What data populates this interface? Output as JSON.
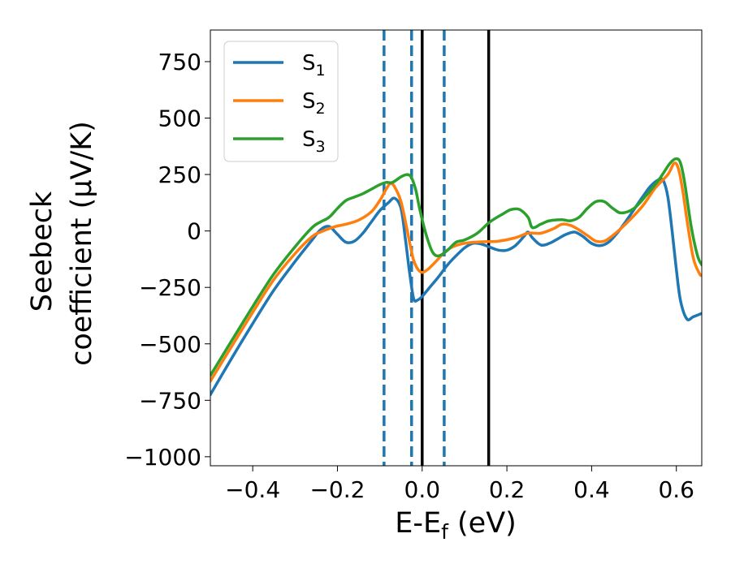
{
  "chart_data": {
    "type": "line",
    "xlabel": {
      "base": "E-E",
      "sub": "f",
      "rest": " (eV)"
    },
    "ylabel": {
      "line1": "Seebeck",
      "line2": "coefficient  (μV/K)"
    },
    "xlim": [
      -0.5,
      0.66
    ],
    "ylim": [
      -1040,
      890
    ],
    "xticks": [
      -0.4,
      -0.2,
      0.0,
      0.2,
      0.4,
      0.6
    ],
    "xtick_labels": [
      "−0.4",
      "−0.2",
      "0.0",
      "0.2",
      "0.4",
      "0.6"
    ],
    "yticks": [
      750,
      500,
      250,
      0,
      -250,
      -500,
      -750,
      -1000
    ],
    "ytick_labels": [
      "750",
      "500",
      "250",
      "0",
      "−250",
      "−500",
      "−750",
      "−1000"
    ],
    "grid": false,
    "legend_position": "top-left",
    "series": [
      {
        "name": "S1",
        "label_base": "S",
        "label_sub": "1",
        "color": "#1f77b4",
        "points": [
          [
            -0.5,
            -725
          ],
          [
            -0.45,
            -565
          ],
          [
            -0.4,
            -410
          ],
          [
            -0.35,
            -262
          ],
          [
            -0.3,
            -135
          ],
          [
            -0.26,
            -40
          ],
          [
            -0.24,
            5
          ],
          [
            -0.22,
            20
          ],
          [
            -0.2,
            -15
          ],
          [
            -0.18,
            -50
          ],
          [
            -0.16,
            -45
          ],
          [
            -0.14,
            -10
          ],
          [
            -0.12,
            40
          ],
          [
            -0.1,
            90
          ],
          [
            -0.08,
            125
          ],
          [
            -0.065,
            145
          ],
          [
            -0.05,
            100
          ],
          [
            -0.04,
            -30
          ],
          [
            -0.03,
            -180
          ],
          [
            -0.02,
            -300
          ],
          [
            -0.01,
            -305
          ],
          [
            0.0,
            -290
          ],
          [
            0.02,
            -245
          ],
          [
            0.04,
            -200
          ],
          [
            0.06,
            -150
          ],
          [
            0.08,
            -110
          ],
          [
            0.1,
            -75
          ],
          [
            0.12,
            -55
          ],
          [
            0.14,
            -58
          ],
          [
            0.16,
            -72
          ],
          [
            0.18,
            -85
          ],
          [
            0.2,
            -85
          ],
          [
            0.22,
            -65
          ],
          [
            0.24,
            -25
          ],
          [
            0.25,
            -5
          ],
          [
            0.26,
            -30
          ],
          [
            0.28,
            -62
          ],
          [
            0.3,
            -55
          ],
          [
            0.32,
            -35
          ],
          [
            0.34,
            -15
          ],
          [
            0.36,
            -5
          ],
          [
            0.38,
            -25
          ],
          [
            0.4,
            -55
          ],
          [
            0.42,
            -65
          ],
          [
            0.44,
            -50
          ],
          [
            0.46,
            -10
          ],
          [
            0.48,
            40
          ],
          [
            0.5,
            95
          ],
          [
            0.52,
            150
          ],
          [
            0.54,
            200
          ],
          [
            0.56,
            228
          ],
          [
            0.57,
            220
          ],
          [
            0.58,
            150
          ],
          [
            0.59,
            0
          ],
          [
            0.6,
            -170
          ],
          [
            0.61,
            -310
          ],
          [
            0.625,
            -390
          ],
          [
            0.64,
            -380
          ],
          [
            0.66,
            -365
          ]
        ]
      },
      {
        "name": "S2",
        "label_base": "S",
        "label_sub": "2",
        "color": "#ff7f0e",
        "points": [
          [
            -0.5,
            -665
          ],
          [
            -0.45,
            -512
          ],
          [
            -0.4,
            -360
          ],
          [
            -0.35,
            -215
          ],
          [
            -0.3,
            -100
          ],
          [
            -0.26,
            -25
          ],
          [
            -0.24,
            -5
          ],
          [
            -0.22,
            10
          ],
          [
            -0.2,
            22
          ],
          [
            -0.18,
            30
          ],
          [
            -0.15,
            48
          ],
          [
            -0.12,
            85
          ],
          [
            -0.1,
            135
          ],
          [
            -0.085,
            185
          ],
          [
            -0.075,
            210
          ],
          [
            -0.065,
            195
          ],
          [
            -0.05,
            130
          ],
          [
            -0.035,
            0
          ],
          [
            -0.02,
            -130
          ],
          [
            -0.005,
            -180
          ],
          [
            0.01,
            -175
          ],
          [
            0.03,
            -140
          ],
          [
            0.05,
            -100
          ],
          [
            0.07,
            -72
          ],
          [
            0.1,
            -55
          ],
          [
            0.14,
            -48
          ],
          [
            0.18,
            -45
          ],
          [
            0.22,
            -30
          ],
          [
            0.25,
            -10
          ],
          [
            0.28,
            -10
          ],
          [
            0.31,
            10
          ],
          [
            0.33,
            30
          ],
          [
            0.35,
            25
          ],
          [
            0.37,
            5
          ],
          [
            0.39,
            -20
          ],
          [
            0.41,
            -45
          ],
          [
            0.43,
            -45
          ],
          [
            0.45,
            -20
          ],
          [
            0.48,
            30
          ],
          [
            0.52,
            110
          ],
          [
            0.55,
            190
          ],
          [
            0.58,
            250
          ],
          [
            0.595,
            300
          ],
          [
            0.605,
            275
          ],
          [
            0.615,
            180
          ],
          [
            0.625,
            50
          ],
          [
            0.64,
            -120
          ],
          [
            0.655,
            -190
          ],
          [
            0.66,
            -195
          ]
        ]
      },
      {
        "name": "S3",
        "label_base": "S",
        "label_sub": "3",
        "color": "#2ca02c",
        "points": [
          [
            -0.5,
            -640
          ],
          [
            -0.45,
            -487
          ],
          [
            -0.4,
            -335
          ],
          [
            -0.35,
            -190
          ],
          [
            -0.3,
            -70
          ],
          [
            -0.26,
            15
          ],
          [
            -0.24,
            40
          ],
          [
            -0.22,
            60
          ],
          [
            -0.2,
            100
          ],
          [
            -0.18,
            135
          ],
          [
            -0.16,
            150
          ],
          [
            -0.14,
            165
          ],
          [
            -0.12,
            185
          ],
          [
            -0.1,
            205
          ],
          [
            -0.085,
            215
          ],
          [
            -0.07,
            215
          ],
          [
            -0.05,
            240
          ],
          [
            -0.035,
            250
          ],
          [
            -0.025,
            235
          ],
          [
            -0.015,
            180
          ],
          [
            -0.005,
            90
          ],
          [
            0.01,
            -20
          ],
          [
            0.025,
            -95
          ],
          [
            0.04,
            -110
          ],
          [
            0.06,
            -85
          ],
          [
            0.08,
            -50
          ],
          [
            0.1,
            -40
          ],
          [
            0.13,
            -10
          ],
          [
            0.16,
            40
          ],
          [
            0.19,
            75
          ],
          [
            0.21,
            95
          ],
          [
            0.23,
            95
          ],
          [
            0.25,
            60
          ],
          [
            0.26,
            15
          ],
          [
            0.28,
            30
          ],
          [
            0.3,
            45
          ],
          [
            0.33,
            50
          ],
          [
            0.35,
            45
          ],
          [
            0.37,
            60
          ],
          [
            0.39,
            100
          ],
          [
            0.41,
            130
          ],
          [
            0.43,
            130
          ],
          [
            0.45,
            100
          ],
          [
            0.47,
            80
          ],
          [
            0.5,
            100
          ],
          [
            0.53,
            160
          ],
          [
            0.56,
            230
          ],
          [
            0.585,
            300
          ],
          [
            0.6,
            320
          ],
          [
            0.61,
            300
          ],
          [
            0.62,
            210
          ],
          [
            0.635,
            20
          ],
          [
            0.65,
            -110
          ],
          [
            0.66,
            -150
          ]
        ]
      }
    ],
    "vlines": [
      {
        "x": -0.09,
        "style": "dashed",
        "color": "#1f77b4"
      },
      {
        "x": -0.025,
        "style": "dashed",
        "color": "#1f77b4"
      },
      {
        "x": 0.052,
        "style": "dashed",
        "color": "#1f77b4"
      },
      {
        "x": 0.0,
        "style": "solid",
        "color": "#000000"
      },
      {
        "x": 0.157,
        "style": "solid",
        "color": "#000000"
      }
    ]
  }
}
